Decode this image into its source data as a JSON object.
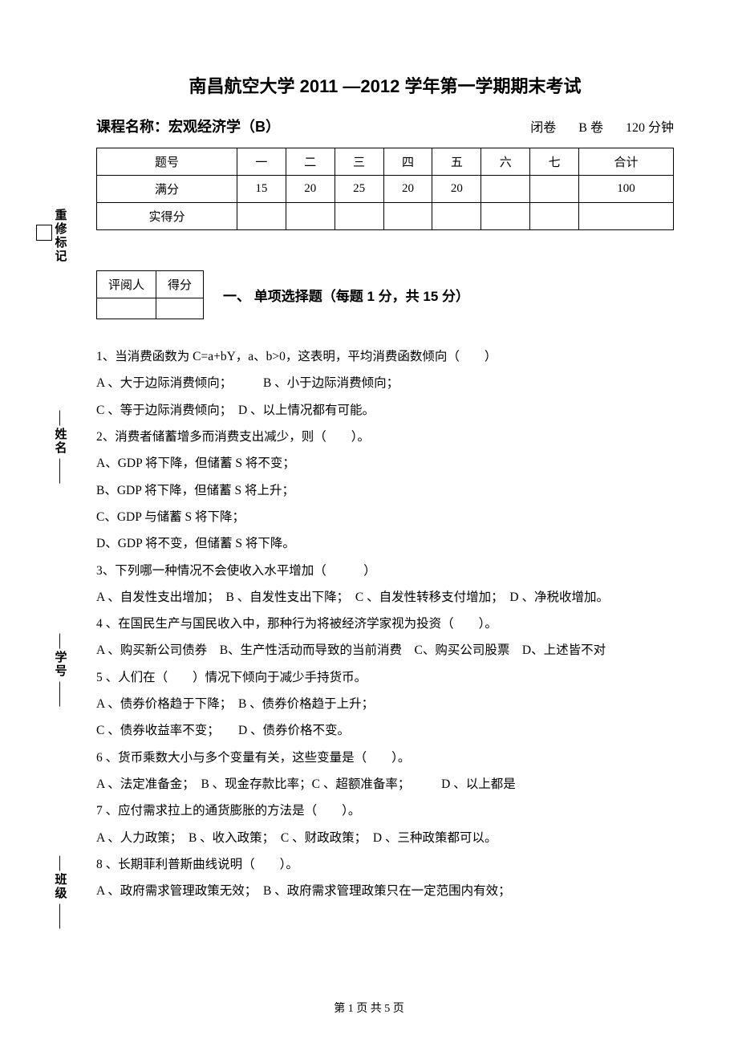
{
  "title": "南昌航空大学 2011 —2012 学年第一学期期末考试",
  "course_line": {
    "label": "课程名称：宏观经济学（B）",
    "exam_type": "闭卷",
    "paper": "B 卷",
    "duration": "120 分钟"
  },
  "score_table": {
    "headers": [
      "题号",
      "一",
      "二",
      "三",
      "四",
      "五",
      "六",
      "七",
      "合计"
    ],
    "full_row_label": "满分",
    "full_scores": [
      "15",
      "20",
      "25",
      "20",
      "20",
      "",
      "",
      "100"
    ],
    "actual_row_label": "实得分"
  },
  "grader_table": {
    "col1": "评阅人",
    "col2": "得分"
  },
  "section1_title": "一、 单项选择题（每题 1 分，共 15 分）",
  "vertical_labels": {
    "revise": "重修标记",
    "name": "姓名",
    "id": "学号",
    "class": "班级"
  },
  "dashes_short": "---------",
  "dashes_long": "---------------",
  "questions": [
    "1、当消费函数为 C=a+bY，a、b>0，这表明，平均消费函数倾向（　　）",
    "A 、大于边际消费倾向；　　　B 、小于边际消费倾向；",
    "C 、等于边际消费倾向；　D 、以上情况都有可能。",
    "2、消费者储蓄增多而消费支出减少，则（　　）。",
    "A、GDP 将下降，但储蓄 S 将不变；",
    "B、GDP 将下降，但储蓄 S 将上升；",
    "C、GDP 与储蓄 S 将下降；",
    "D、GDP 将不变，但储蓄 S 将下降。",
    "3、下列哪一种情况不会使收入水平增加（　　　）",
    "A 、自发性支出增加；　B 、自发性支出下降；　C 、自发性转移支付增加；　D 、净税收增加。",
    "4 、在国民生产与国民收入中，那种行为将被经济学家视为投资（　　）。",
    "A 、购买新公司债券　B、生产性活动而导致的当前消费　C、购买公司股票　D、上述皆不对",
    "5 、人们在（　　）情况下倾向于减少手持货币。",
    "A 、债券价格趋于下降；　B 、债券价格趋于上升；",
    "C 、债券收益率不变；　　D 、债券价格不变。",
    "6 、货币乘数大小与多个变量有关，这些变量是（　　）。",
    "A 、法定准备金；　B 、现金存款比率；C 、超额准备率；　　　D 、以上都是",
    "7 、应付需求拉上的通货膨胀的方法是（　　）。",
    "A 、人力政策；　B 、收入政策；　C 、财政政策；　D 、三种政策都可以。",
    "8 、长期菲利普斯曲线说明（　　）。",
    "A 、政府需求管理政策无效；　B 、政府需求管理政策只在一定范围内有效；"
  ],
  "footer": "第 1 页 共 5 页",
  "colors": {
    "text": "#000000",
    "bg": "#ffffff",
    "border": "#000000"
  }
}
